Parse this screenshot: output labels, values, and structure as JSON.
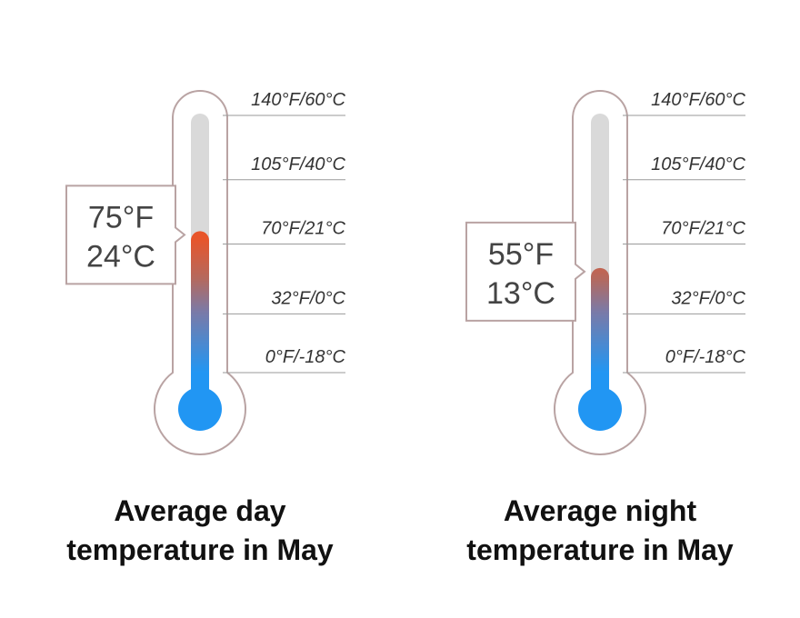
{
  "chart_data": [
    {
      "type": "thermometer",
      "title": [
        "Average day",
        "temperature in May"
      ],
      "value": 75,
      "value_label": "75°F",
      "secondary_label": "24°C",
      "ylim": [
        0,
        140
      ],
      "yticks": [
        {
          "value": 0,
          "label": "0°F/-18°C"
        },
        {
          "value": 32,
          "label": "32°F/0°C"
        },
        {
          "value": 70,
          "label": "70°F/21°C"
        },
        {
          "value": 105,
          "label": "105°F/40°C"
        },
        {
          "value": 140,
          "label": "140°F/60°C"
        }
      ],
      "track_color": "#d9d9d9",
      "bulb_color": "#2196f3",
      "outline_color": "#b9a3a3"
    },
    {
      "type": "thermometer",
      "title": [
        "Average night",
        "temperature in May"
      ],
      "value": 55,
      "value_label": "55°F",
      "secondary_label": "13°C",
      "ylim": [
        0,
        140
      ],
      "yticks": [
        {
          "value": 0,
          "label": "0°F/-18°C"
        },
        {
          "value": 32,
          "label": "32°F/0°C"
        },
        {
          "value": 70,
          "label": "70°F/21°C"
        },
        {
          "value": 105,
          "label": "105°F/40°C"
        },
        {
          "value": 140,
          "label": "140°F/60°C"
        }
      ],
      "track_color": "#d9d9d9",
      "bulb_color": "#2196f3",
      "outline_color": "#b9a3a3"
    }
  ]
}
